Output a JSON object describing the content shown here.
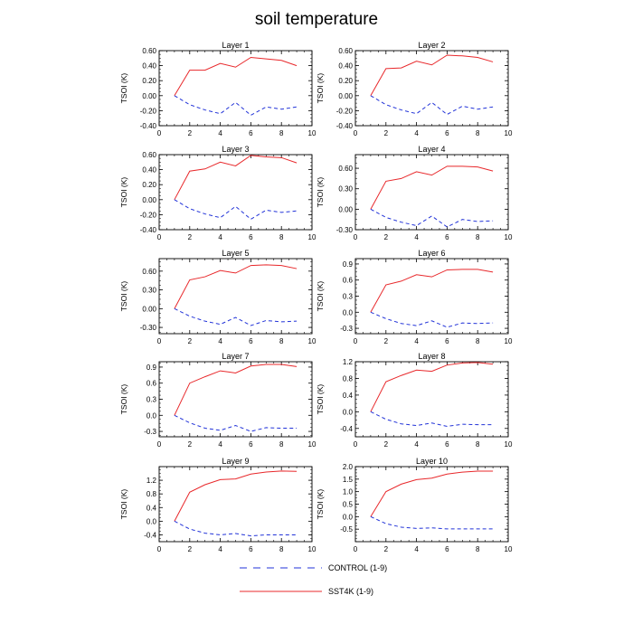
{
  "title": "soil temperature",
  "colors": {
    "SST4K (1-9)": "#e8282b",
    "CONTROL (1-9)": "#2233d8"
  },
  "legend": [
    {
      "name": "CONTROL (1-9)",
      "style": "dashed"
    },
    {
      "name": "SST4K (1-9)",
      "style": "solid"
    }
  ],
  "chart_data": [
    {
      "type": "line",
      "title": "Layer 1",
      "ylabel": "TSOI  (K)",
      "xlim": [
        0,
        10
      ],
      "ylim": [
        -0.4,
        0.6
      ],
      "xticks": [
        0,
        2,
        4,
        6,
        8,
        10
      ],
      "yticks": [
        -0.4,
        -0.2,
        0.0,
        0.2,
        0.4,
        0.6
      ],
      "ytick_labels": [
        "-0.40",
        "-0.20",
        "0.00",
        "0.20",
        "0.40",
        "0.60"
      ],
      "x": [
        1,
        2,
        3,
        4,
        5,
        6,
        7,
        8,
        9
      ],
      "series": [
        {
          "name": "SST4K (1-9)",
          "values": [
            0.0,
            0.34,
            0.34,
            0.43,
            0.38,
            0.51,
            0.49,
            0.47,
            0.4
          ]
        },
        {
          "name": "CONTROL (1-9)",
          "values": [
            0.0,
            -0.12,
            -0.19,
            -0.24,
            -0.09,
            -0.26,
            -0.15,
            -0.18,
            -0.15
          ]
        }
      ]
    },
    {
      "type": "line",
      "title": "Layer 2",
      "ylabel": "TSOI  (K)",
      "xlim": [
        0,
        10
      ],
      "ylim": [
        -0.4,
        0.6
      ],
      "xticks": [
        0,
        2,
        4,
        6,
        8,
        10
      ],
      "yticks": [
        -0.4,
        -0.2,
        0.0,
        0.2,
        0.4,
        0.6
      ],
      "ytick_labels": [
        "-0.40",
        "-0.20",
        "0.00",
        "0.20",
        "0.40",
        "0.60"
      ],
      "x": [
        1,
        2,
        3,
        4,
        5,
        6,
        7,
        8,
        9
      ],
      "series": [
        {
          "name": "SST4K (1-9)",
          "values": [
            0.0,
            0.36,
            0.37,
            0.46,
            0.41,
            0.54,
            0.53,
            0.51,
            0.45
          ]
        },
        {
          "name": "CONTROL (1-9)",
          "values": [
            0.0,
            -0.12,
            -0.19,
            -0.24,
            -0.09,
            -0.25,
            -0.14,
            -0.18,
            -0.15
          ]
        }
      ]
    },
    {
      "type": "line",
      "title": "Layer 3",
      "ylabel": "TSOI  (K)",
      "xlim": [
        0,
        10
      ],
      "ylim": [
        -0.4,
        0.6
      ],
      "xticks": [
        0,
        2,
        4,
        6,
        8,
        10
      ],
      "yticks": [
        -0.4,
        -0.2,
        0.0,
        0.2,
        0.4,
        0.6
      ],
      "ytick_labels": [
        "-0.40",
        "-0.20",
        "0.00",
        "0.20",
        "0.40",
        "0.60"
      ],
      "x": [
        1,
        2,
        3,
        4,
        5,
        6,
        7,
        8,
        9
      ],
      "series": [
        {
          "name": "SST4K (1-9)",
          "values": [
            0.0,
            0.38,
            0.41,
            0.5,
            0.45,
            0.59,
            0.57,
            0.56,
            0.49
          ]
        },
        {
          "name": "CONTROL (1-9)",
          "values": [
            0.0,
            -0.12,
            -0.19,
            -0.24,
            -0.09,
            -0.26,
            -0.14,
            -0.17,
            -0.15
          ]
        }
      ]
    },
    {
      "type": "line",
      "title": "Layer 4",
      "ylabel": "TSOI  (K)",
      "xlim": [
        0,
        10
      ],
      "ylim": [
        -0.3,
        0.8
      ],
      "xticks": [
        0,
        2,
        4,
        6,
        8,
        10
      ],
      "yticks": [
        -0.3,
        0.0,
        0.3,
        0.6
      ],
      "ytick_labels": [
        "-0.30",
        "0.00",
        "0.30",
        "0.60"
      ],
      "x": [
        1,
        2,
        3,
        4,
        5,
        6,
        7,
        8,
        9
      ],
      "series": [
        {
          "name": "SST4K (1-9)",
          "values": [
            0.0,
            0.41,
            0.45,
            0.55,
            0.5,
            0.63,
            0.63,
            0.62,
            0.56
          ]
        },
        {
          "name": "CONTROL (1-9)",
          "values": [
            0.0,
            -0.12,
            -0.19,
            -0.24,
            -0.1,
            -0.26,
            -0.15,
            -0.18,
            -0.17
          ]
        }
      ]
    },
    {
      "type": "line",
      "title": "Layer 5",
      "ylabel": "TSOI  (K)",
      "xlim": [
        0,
        10
      ],
      "ylim": [
        -0.4,
        0.8
      ],
      "xticks": [
        0,
        2,
        4,
        6,
        8,
        10
      ],
      "yticks": [
        -0.3,
        0.0,
        0.3,
        0.6
      ],
      "ytick_labels": [
        "-0.30",
        "0.00",
        "0.30",
        "0.60"
      ],
      "x": [
        1,
        2,
        3,
        4,
        5,
        6,
        7,
        8,
        9
      ],
      "series": [
        {
          "name": "SST4K (1-9)",
          "values": [
            0.0,
            0.46,
            0.51,
            0.61,
            0.57,
            0.69,
            0.7,
            0.69,
            0.64
          ]
        },
        {
          "name": "CONTROL (1-9)",
          "values": [
            0.0,
            -0.12,
            -0.2,
            -0.25,
            -0.14,
            -0.27,
            -0.19,
            -0.21,
            -0.2
          ]
        }
      ]
    },
    {
      "type": "line",
      "title": "Layer 6",
      "ylabel": "TSOI  (K)",
      "xlim": [
        0,
        10
      ],
      "ylim": [
        -0.4,
        1.0
      ],
      "xticks": [
        0,
        2,
        4,
        6,
        8,
        10
      ],
      "yticks": [
        -0.3,
        0.0,
        0.3,
        0.6,
        0.9
      ],
      "ytick_labels": [
        "-0.3",
        "0.0",
        "0.3",
        "0.6",
        "0.9"
      ],
      "x": [
        1,
        2,
        3,
        4,
        5,
        6,
        7,
        8,
        9
      ],
      "series": [
        {
          "name": "SST4K (1-9)",
          "values": [
            0.0,
            0.51,
            0.58,
            0.7,
            0.66,
            0.79,
            0.8,
            0.8,
            0.75
          ]
        },
        {
          "name": "CONTROL (1-9)",
          "values": [
            0.0,
            -0.12,
            -0.21,
            -0.25,
            -0.16,
            -0.28,
            -0.2,
            -0.21,
            -0.2
          ]
        }
      ]
    },
    {
      "type": "line",
      "title": "Layer 7",
      "ylabel": "TSOI  (K)",
      "xlim": [
        0,
        10
      ],
      "ylim": [
        -0.4,
        1.0
      ],
      "xticks": [
        0,
        2,
        4,
        6,
        8,
        10
      ],
      "yticks": [
        -0.3,
        0.0,
        0.3,
        0.6,
        0.9
      ],
      "ytick_labels": [
        "-0.3",
        "0.0",
        "0.3",
        "0.6",
        "0.9"
      ],
      "x": [
        1,
        2,
        3,
        4,
        5,
        6,
        7,
        8,
        9
      ],
      "series": [
        {
          "name": "SST4K (1-9)",
          "values": [
            0.0,
            0.6,
            0.72,
            0.83,
            0.79,
            0.92,
            0.95,
            0.95,
            0.91
          ]
        },
        {
          "name": "CONTROL (1-9)",
          "values": [
            0.0,
            -0.14,
            -0.24,
            -0.28,
            -0.19,
            -0.3,
            -0.23,
            -0.24,
            -0.24
          ]
        }
      ]
    },
    {
      "type": "line",
      "title": "Layer 8",
      "ylabel": "TSOI  (K)",
      "xlim": [
        0,
        10
      ],
      "ylim": [
        -0.6,
        1.2
      ],
      "xticks": [
        0,
        2,
        4,
        6,
        8,
        10
      ],
      "yticks": [
        -0.4,
        0.0,
        0.4,
        0.8,
        1.2
      ],
      "ytick_labels": [
        "-0.4",
        "0.0",
        "0.4",
        "0.8",
        "1.2"
      ],
      "x": [
        1,
        2,
        3,
        4,
        5,
        6,
        7,
        8,
        9
      ],
      "series": [
        {
          "name": "SST4K (1-9)",
          "values": [
            0.0,
            0.72,
            0.87,
            1.0,
            0.97,
            1.12,
            1.17,
            1.18,
            1.14
          ]
        },
        {
          "name": "CONTROL (1-9)",
          "values": [
            0.0,
            -0.18,
            -0.29,
            -0.33,
            -0.27,
            -0.35,
            -0.3,
            -0.31,
            -0.31
          ]
        }
      ]
    },
    {
      "type": "line",
      "title": "Layer 9",
      "ylabel": "TSOI  (K)",
      "xlim": [
        0,
        10
      ],
      "ylim": [
        -0.6,
        1.6
      ],
      "xticks": [
        0,
        2,
        4,
        6,
        8,
        10
      ],
      "yticks": [
        -0.4,
        0.0,
        0.4,
        0.8,
        1.2
      ],
      "ytick_labels": [
        "-0.4",
        "0.0",
        "0.4",
        "0.8",
        "1.2"
      ],
      "x": [
        1,
        2,
        3,
        4,
        5,
        6,
        7,
        8,
        9
      ],
      "series": [
        {
          "name": "SST4K (1-9)",
          "values": [
            0.0,
            0.85,
            1.07,
            1.22,
            1.24,
            1.38,
            1.44,
            1.47,
            1.46
          ]
        },
        {
          "name": "CONTROL (1-9)",
          "values": [
            0.0,
            -0.23,
            -0.35,
            -0.4,
            -0.36,
            -0.43,
            -0.4,
            -0.4,
            -0.4
          ]
        }
      ]
    },
    {
      "type": "line",
      "title": "Layer 10",
      "ylabel": "TSOI  (K)",
      "xlim": [
        0,
        10
      ],
      "ylim": [
        -1.0,
        2.0
      ],
      "xticks": [
        0,
        2,
        4,
        6,
        8,
        10
      ],
      "yticks": [
        -0.5,
        0.0,
        0.5,
        1.0,
        1.5,
        2.0
      ],
      "ytick_labels": [
        "-0.5",
        "0.0",
        "0.5",
        "1.0",
        "1.5",
        "2.0"
      ],
      "x": [
        1,
        2,
        3,
        4,
        5,
        6,
        7,
        8,
        9
      ],
      "series": [
        {
          "name": "SST4K (1-9)",
          "values": [
            0.0,
            1.0,
            1.3,
            1.48,
            1.54,
            1.7,
            1.78,
            1.82,
            1.82
          ]
        },
        {
          "name": "CONTROL (1-9)",
          "values": [
            0.0,
            -0.28,
            -0.42,
            -0.47,
            -0.45,
            -0.49,
            -0.49,
            -0.49,
            -0.49
          ]
        }
      ]
    }
  ]
}
